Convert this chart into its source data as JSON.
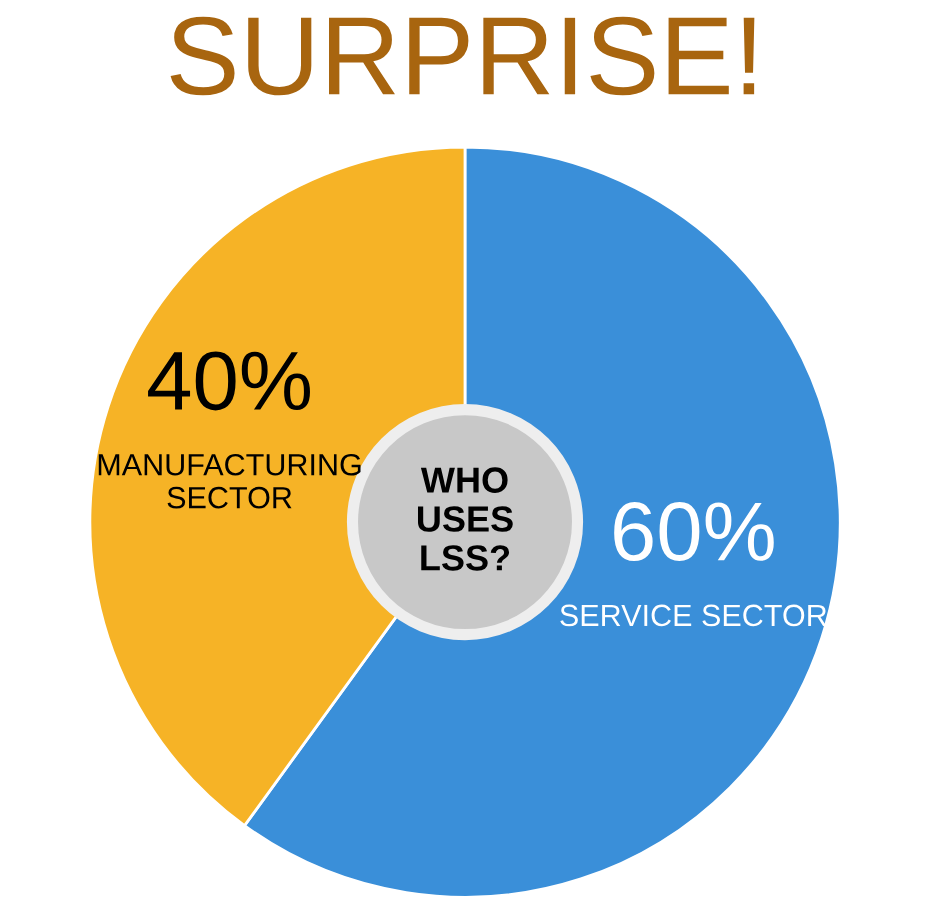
{
  "chart_data": {
    "type": "donut",
    "title": "SURPRISE!",
    "categories": [
      "SERVICE SECTOR",
      "MANUFACTURING SECTOR"
    ],
    "values": [
      60,
      40
    ],
    "value_labels": [
      "60%",
      "40%"
    ],
    "colors": [
      "#3a8fd9",
      "#f6b326"
    ],
    "annotations": [
      "WHO\nUSES\nLSS?"
    ],
    "legend": false
  }
}
